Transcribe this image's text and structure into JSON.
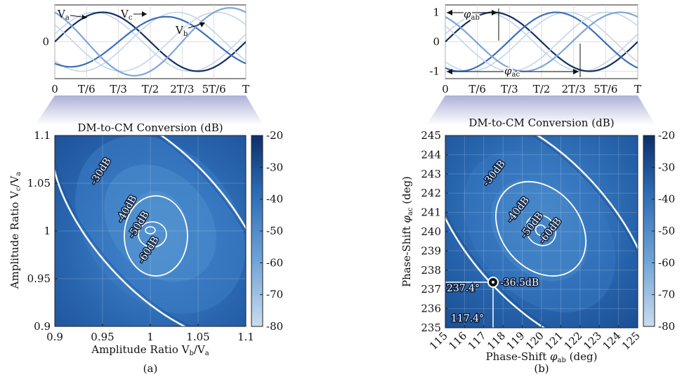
{
  "panels": {
    "a": {
      "caption": "(a)"
    },
    "b": {
      "caption": "(b)"
    }
  },
  "colors": {
    "va": "#15305e",
    "vb": "#3a6fb7",
    "vc": "#7ea5d8",
    "ghost": "#c5d4ea",
    "map_low": "#c9dcee",
    "map_high": "#0e2f6a",
    "contour": "#ffffff"
  },
  "chart_data": [
    {
      "id": "waveform_a",
      "type": "line",
      "x_unit": "T",
      "xlim": [
        0,
        1
      ],
      "ylim": [
        -1.25,
        1.25
      ],
      "x_ticks": [
        0,
        0.1667,
        0.3333,
        0.5,
        0.6667,
        0.8333,
        1
      ],
      "x_tick_labels": [
        "0",
        "T/6",
        "T/3",
        "T/2",
        "2T/3",
        "5T/6",
        "T"
      ],
      "y_ticks": [
        0
      ],
      "y_tick_labels": [
        "0"
      ],
      "series": [
        {
          "name": "Va",
          "amplitude": 1.0,
          "phase_deg": 0
        },
        {
          "name": "Vb",
          "amplitude": 0.85,
          "phase_deg": -120
        },
        {
          "name": "Vc",
          "amplitude": 1.15,
          "phase_deg": 120
        }
      ],
      "labels": {
        "va": "Va",
        "vb": "Vb",
        "vc": "Vc"
      }
    },
    {
      "id": "waveform_b",
      "type": "line",
      "x_unit": "T",
      "xlim": [
        0,
        1
      ],
      "ylim": [
        -1.25,
        1.25
      ],
      "x_ticks": [
        0,
        0.1667,
        0.3333,
        0.5,
        0.6667,
        0.8333,
        1
      ],
      "x_tick_labels": [
        "0",
        "T/6",
        "T/3",
        "T/2",
        "2T/3",
        "5T/6",
        "T"
      ],
      "y_ticks": [
        1,
        0,
        -1
      ],
      "y_tick_labels": [
        "1",
        "0",
        "-1"
      ],
      "series": [
        {
          "name": "Va",
          "amplitude": 1.0,
          "phase_deg": 0
        },
        {
          "name": "Vb",
          "amplitude": 1.0,
          "phase_deg": -117.4
        },
        {
          "name": "Vc",
          "amplitude": 1.0,
          "phase_deg": -237.4
        }
      ],
      "labels": {
        "phi_ab": "φab",
        "phi_ac": "φac"
      }
    },
    {
      "id": "heatmap_a",
      "type": "heatmap",
      "title": "DM-to-CM Conversion (dB)",
      "xlabel": "Amplitude Ratio Vb/Va",
      "ylabel": "Amplitude Ratio Vc/Va",
      "xlim": [
        0.9,
        1.1
      ],
      "ylim": [
        0.9,
        1.1
      ],
      "x_tick_labels": [
        "0.9",
        "0.95",
        "1",
        "1.05",
        "1.1"
      ],
      "y_tick_labels": [
        "1.1",
        "1.05",
        "1",
        "0.95",
        "0.9"
      ],
      "center": [
        1.01,
        0.99
      ],
      "contours": [
        {
          "level": -30,
          "label": "-30dB"
        },
        {
          "level": -40,
          "label": "-40dB"
        },
        {
          "level": -50,
          "label": "-50dB"
        },
        {
          "level": -60,
          "label": "-60dB"
        }
      ]
    },
    {
      "id": "heatmap_b",
      "type": "heatmap",
      "title": "DM-to-CM Conversion (dB)",
      "xlabel": "Phase-Shift φab (deg)",
      "ylabel": "Phase-Shift φac (deg)",
      "xlim": [
        115,
        125
      ],
      "ylim": [
        235,
        245
      ],
      "x_tick_labels": [
        "115",
        "116",
        "117",
        "118",
        "119",
        "120",
        "121",
        "122",
        "123",
        "124",
        "125"
      ],
      "y_tick_labels": [
        "245",
        "244",
        "243",
        "242",
        "241",
        "240",
        "239",
        "238",
        "237",
        "236",
        "235"
      ],
      "center": [
        120,
        240
      ],
      "contours": [
        {
          "level": -30,
          "label": "-30dB"
        },
        {
          "level": -40,
          "label": "-40dB"
        },
        {
          "level": -50,
          "label": "-50dB"
        },
        {
          "level": -60,
          "label": "-60dB"
        }
      ],
      "marker": {
        "x": 117.4,
        "y": 237.4,
        "value_label": "-36.5dB",
        "x_label": "117.4°",
        "y_label": "237.4°"
      }
    },
    {
      "id": "colorbar",
      "type": "colorbar",
      "range": [
        -80,
        -20
      ],
      "tick_labels": [
        "-20",
        "-30",
        "-40",
        "-50",
        "-60",
        "-70",
        "-80"
      ]
    }
  ]
}
